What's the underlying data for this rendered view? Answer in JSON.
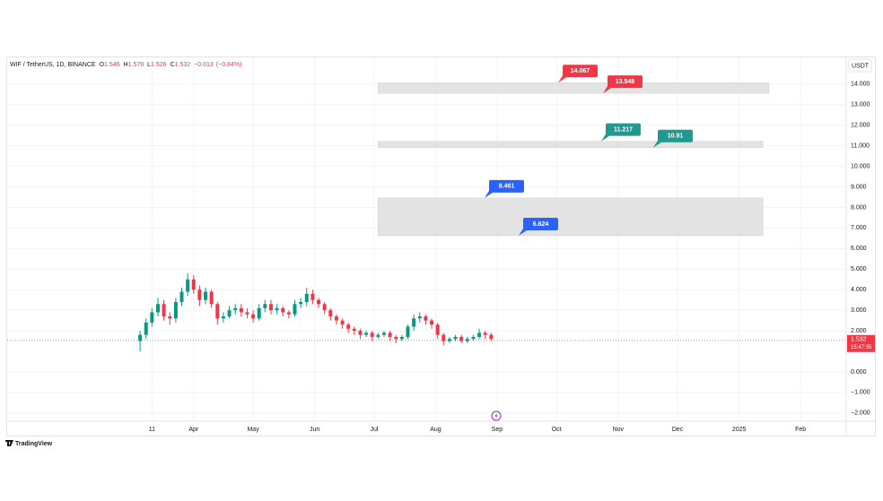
{
  "chart_data": {
    "type": "candlestick",
    "symbol": "WIF / TetherUS, 1D, BINANCE",
    "ohlc": [
      {
        "label": "O",
        "value": 1.545
      },
      {
        "label": "H",
        "value": 1.579
      },
      {
        "label": "L",
        "value": 1.526
      },
      {
        "label": "C",
        "value": 1.532
      }
    ],
    "change": {
      "value": -0.013,
      "label": "−0.013"
    },
    "change_pct": {
      "value": -0.84,
      "label": "(−0.84%)"
    },
    "currency": "USDT",
    "last_price": 1.532,
    "countdown": "15:47:35",
    "brand": "TradingView",
    "up_color": "#089981",
    "down_color": "#f23645",
    "xlim": [
      "2023-12-29",
      "2025-02-24"
    ],
    "xticks": [
      {
        "value": "2024-03-11",
        "label": "11"
      },
      {
        "value": "2024-04-01",
        "label": "Apr"
      },
      {
        "value": "2024-05-01",
        "label": "May"
      },
      {
        "value": "2024-06-01",
        "label": "Jun"
      },
      {
        "value": "2024-07-01",
        "label": "Jul"
      },
      {
        "value": "2024-08-01",
        "label": "Aug"
      },
      {
        "value": "2024-09-01",
        "label": "Sep"
      },
      {
        "value": "2024-10-01",
        "label": "Oct"
      },
      {
        "value": "2024-11-01",
        "label": "Nov"
      },
      {
        "value": "2024-12-01",
        "label": "Dec"
      },
      {
        "value": "2025-01-01",
        "label": "2025"
      },
      {
        "value": "2025-02-01",
        "label": "Feb"
      }
    ],
    "ylim": [
      -2.4,
      15.3
    ],
    "yticks": [
      {
        "value": 14,
        "label": "14.000"
      },
      {
        "value": 13,
        "label": "13.000"
      },
      {
        "value": 12,
        "label": "12.000"
      },
      {
        "value": 11,
        "label": "11.000"
      },
      {
        "value": 10,
        "label": "10.000"
      },
      {
        "value": 9,
        "label": "9.000"
      },
      {
        "value": 8,
        "label": "8.000"
      },
      {
        "value": 7,
        "label": "7.000"
      },
      {
        "value": 6,
        "label": "6.000"
      },
      {
        "value": 5,
        "label": "5.000"
      },
      {
        "value": 4,
        "label": "4.000"
      },
      {
        "value": 3,
        "label": "3.000"
      },
      {
        "value": 2,
        "label": "2.000"
      },
      {
        "value": 0,
        "label": "0.000"
      },
      {
        "value": -1,
        "label": "−1.000"
      },
      {
        "value": -2,
        "label": "−2.000"
      }
    ],
    "grid": true,
    "x": [
      "2024-03-05",
      "2024-03-08",
      "2024-03-11",
      "2024-03-14",
      "2024-03-17",
      "2024-03-20",
      "2024-03-23",
      "2024-03-26",
      "2024-03-29",
      "2024-04-01",
      "2024-04-04",
      "2024-04-07",
      "2024-04-10",
      "2024-04-13",
      "2024-04-16",
      "2024-04-19",
      "2024-04-22",
      "2024-04-25",
      "2024-04-28",
      "2024-05-01",
      "2024-05-04",
      "2024-05-07",
      "2024-05-10",
      "2024-05-13",
      "2024-05-16",
      "2024-05-19",
      "2024-05-22",
      "2024-05-25",
      "2024-05-28",
      "2024-05-31",
      "2024-06-03",
      "2024-06-06",
      "2024-06-09",
      "2024-06-12",
      "2024-06-15",
      "2024-06-18",
      "2024-06-21",
      "2024-06-24",
      "2024-06-27",
      "2024-06-30",
      "2024-07-03",
      "2024-07-06",
      "2024-07-09",
      "2024-07-12",
      "2024-07-15",
      "2024-07-18",
      "2024-07-21",
      "2024-07-24",
      "2024-07-27",
      "2024-07-30",
      "2024-08-02",
      "2024-08-05",
      "2024-08-08",
      "2024-08-11",
      "2024-08-14",
      "2024-08-17",
      "2024-08-20",
      "2024-08-23",
      "2024-08-26",
      "2024-08-29"
    ],
    "open": [
      1.5,
      1.8,
      2.4,
      2.9,
      3.3,
      2.7,
      2.6,
      3.4,
      3.9,
      4.5,
      4.0,
      3.5,
      3.9,
      3.3,
      2.6,
      2.7,
      3.0,
      3.1,
      2.9,
      2.8,
      2.6,
      3.1,
      3.3,
      3.0,
      3.1,
      2.9,
      2.8,
      3.3,
      3.4,
      3.8,
      3.5,
      3.3,
      3.0,
      2.7,
      2.5,
      2.3,
      2.1,
      2.0,
      1.8,
      1.9,
      1.7,
      1.8,
      1.9,
      1.7,
      1.6,
      1.7,
      2.2,
      2.6,
      2.7,
      2.5,
      2.3,
      1.8,
      1.5,
      1.6,
      1.7,
      1.5,
      1.6,
      1.7,
      1.9,
      1.8
    ],
    "high": [
      2.0,
      2.6,
      3.1,
      3.6,
      3.5,
      2.9,
      3.6,
      4.1,
      4.8,
      4.7,
      4.2,
      4.1,
      4.0,
      3.4,
      2.9,
      3.2,
      3.3,
      3.3,
      3.1,
      3.0,
      3.3,
      3.5,
      3.5,
      3.3,
      3.2,
      3.0,
      3.5,
      3.6,
      4.1,
      4.0,
      3.6,
      3.4,
      3.1,
      2.8,
      2.6,
      2.4,
      2.2,
      2.1,
      2.0,
      2.0,
      1.9,
      2.0,
      2.0,
      1.8,
      1.8,
      2.3,
      2.8,
      2.9,
      2.8,
      2.6,
      2.4,
      1.9,
      1.7,
      1.8,
      1.8,
      1.7,
      1.8,
      2.1,
      2.0,
      1.9
    ],
    "low": [
      1.0,
      1.6,
      2.2,
      2.7,
      2.5,
      2.3,
      2.4,
      3.2,
      3.7,
      3.8,
      3.2,
      3.3,
      3.1,
      2.3,
      2.4,
      2.6,
      2.8,
      2.7,
      2.6,
      2.4,
      2.5,
      2.9,
      2.8,
      2.8,
      2.7,
      2.6,
      2.7,
      3.1,
      3.2,
      3.3,
      3.1,
      2.8,
      2.5,
      2.3,
      2.1,
      1.9,
      1.8,
      1.6,
      1.7,
      1.5,
      1.6,
      1.7,
      1.5,
      1.4,
      1.5,
      1.6,
      2.0,
      2.4,
      2.3,
      2.1,
      1.6,
      1.3,
      1.4,
      1.5,
      1.4,
      1.4,
      1.5,
      1.6,
      1.6,
      1.5
    ],
    "close": [
      1.8,
      2.4,
      2.9,
      3.3,
      2.7,
      2.6,
      3.4,
      3.9,
      4.5,
      4.0,
      3.5,
      3.9,
      3.3,
      2.6,
      2.7,
      3.0,
      3.1,
      2.9,
      2.8,
      2.6,
      3.1,
      3.3,
      3.0,
      3.1,
      2.9,
      2.8,
      3.3,
      3.4,
      3.8,
      3.5,
      3.3,
      3.0,
      2.7,
      2.5,
      2.3,
      2.1,
      2.0,
      1.8,
      1.9,
      1.7,
      1.8,
      1.9,
      1.7,
      1.6,
      1.7,
      2.2,
      2.6,
      2.7,
      2.5,
      2.3,
      1.8,
      1.5,
      1.6,
      1.7,
      1.5,
      1.6,
      1.7,
      1.9,
      1.8,
      1.6
    ],
    "zones": [
      {
        "low": 13.548,
        "high": 14.067,
        "start": "2024-07-03",
        "end": "2025-01-16",
        "high_color": "#f23645",
        "low_color": "#f23645"
      },
      {
        "low": 10.91,
        "high": 11.217,
        "start": "2024-07-03",
        "end": "2025-01-13",
        "high_color": "#22998f",
        "low_color": "#22998f"
      },
      {
        "low": 6.624,
        "high": 8.461,
        "start": "2024-07-03",
        "end": "2025-01-13",
        "high_color": "#2962ff",
        "low_color": "#2962ff"
      }
    ]
  }
}
